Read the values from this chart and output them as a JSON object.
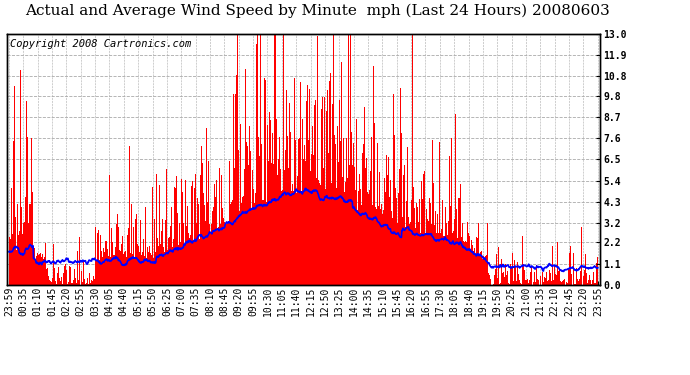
{
  "title": "Actual and Average Wind Speed by Minute  mph (Last 24 Hours) 20080603",
  "copyright": "Copyright 2008 Cartronics.com",
  "yticks": [
    0.0,
    1.1,
    2.2,
    3.2,
    4.3,
    5.4,
    6.5,
    7.6,
    8.7,
    9.8,
    10.8,
    11.9,
    13.0
  ],
  "ylim": [
    0.0,
    13.0
  ],
  "bar_color": "#ff0000",
  "line_color": "#0000ff",
  "bg_color": "#ffffff",
  "grid_color": "#aaaaaa",
  "title_fontsize": 11,
  "copyright_fontsize": 7.5,
  "tick_fontsize": 7,
  "x_tick_labels": [
    "23:59",
    "00:35",
    "01:10",
    "01:45",
    "02:20",
    "02:55",
    "03:30",
    "04:05",
    "04:40",
    "05:15",
    "05:50",
    "06:25",
    "07:00",
    "07:35",
    "08:10",
    "08:45",
    "09:20",
    "09:55",
    "10:30",
    "11:05",
    "11:40",
    "12:15",
    "12:50",
    "13:25",
    "14:00",
    "14:35",
    "15:10",
    "15:45",
    "16:20",
    "16:55",
    "17:30",
    "18:05",
    "18:40",
    "19:15",
    "19:50",
    "20:25",
    "21:00",
    "21:35",
    "22:10",
    "22:45",
    "23:20",
    "23:55"
  ]
}
